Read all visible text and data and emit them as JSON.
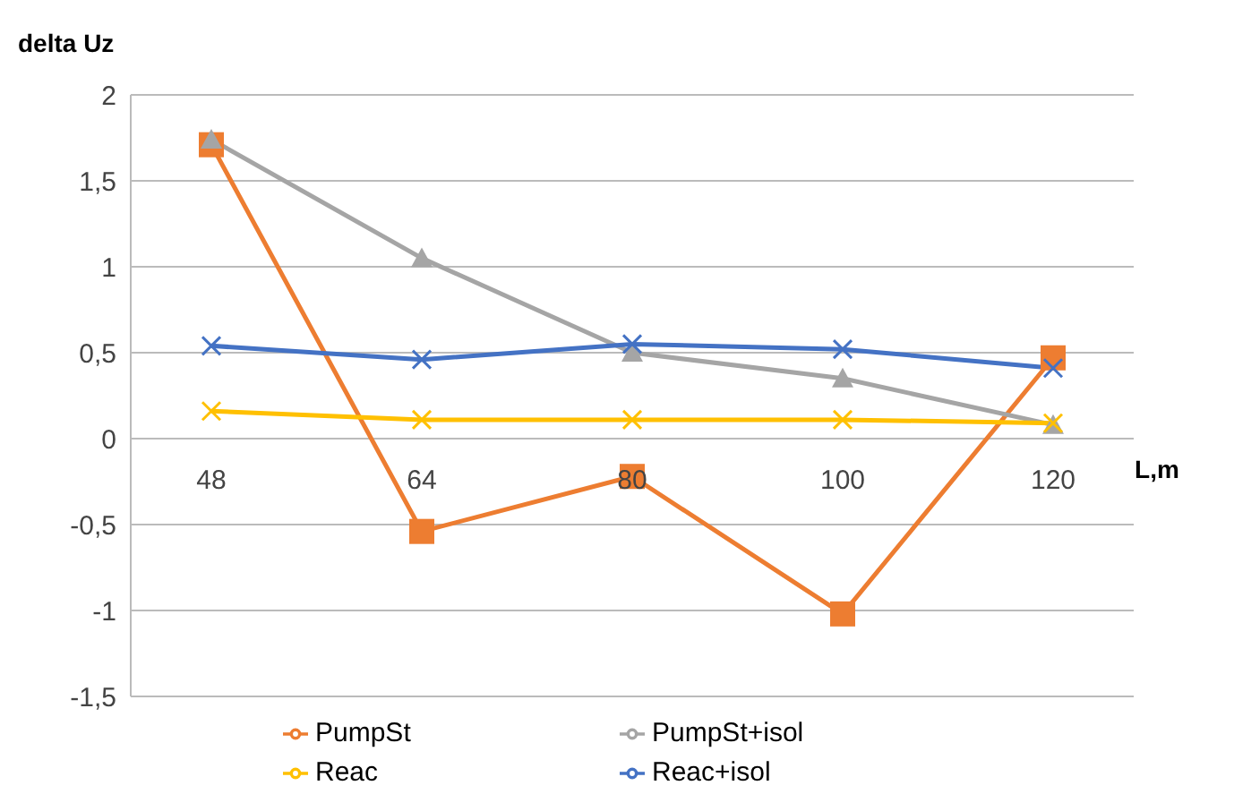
{
  "chart_data": {
    "type": "line",
    "xlabel": "L,m",
    "ylabel": "delta Uz",
    "categories": [
      "48",
      "64",
      "80",
      "100",
      "120"
    ],
    "series": [
      {
        "name": "PumpSt",
        "color": "#ed7d31",
        "marker": "square",
        "values": [
          1.71,
          -0.54,
          -0.22,
          -1.02,
          0.47
        ]
      },
      {
        "name": "PumpSt+isol",
        "color": "#a5a5a5",
        "marker": "triangle",
        "values": [
          1.74,
          1.05,
          0.5,
          0.35,
          0.08
        ]
      },
      {
        "name": "Reac",
        "color": "#ffc000",
        "marker": "cross",
        "values": [
          0.16,
          0.11,
          0.11,
          0.11,
          0.09
        ]
      },
      {
        "name": "Reac+isol",
        "color": "#4472c4",
        "marker": "cross",
        "values": [
          0.54,
          0.46,
          0.55,
          0.52,
          0.41
        ]
      }
    ],
    "ylim": [
      -1.5,
      2
    ],
    "yticks": [
      {
        "value": -1.5,
        "label": "-1,5"
      },
      {
        "value": -1,
        "label": "-1"
      },
      {
        "value": -0.5,
        "label": "-0,5"
      },
      {
        "value": 0,
        "label": "0"
      },
      {
        "value": 0.5,
        "label": "0,5"
      },
      {
        "value": 1,
        "label": "1"
      },
      {
        "value": 1.5,
        "label": "1,5"
      },
      {
        "value": 2,
        "label": "2"
      }
    ],
    "grid": "y",
    "legend": "bottom",
    "line_style": "solid"
  }
}
